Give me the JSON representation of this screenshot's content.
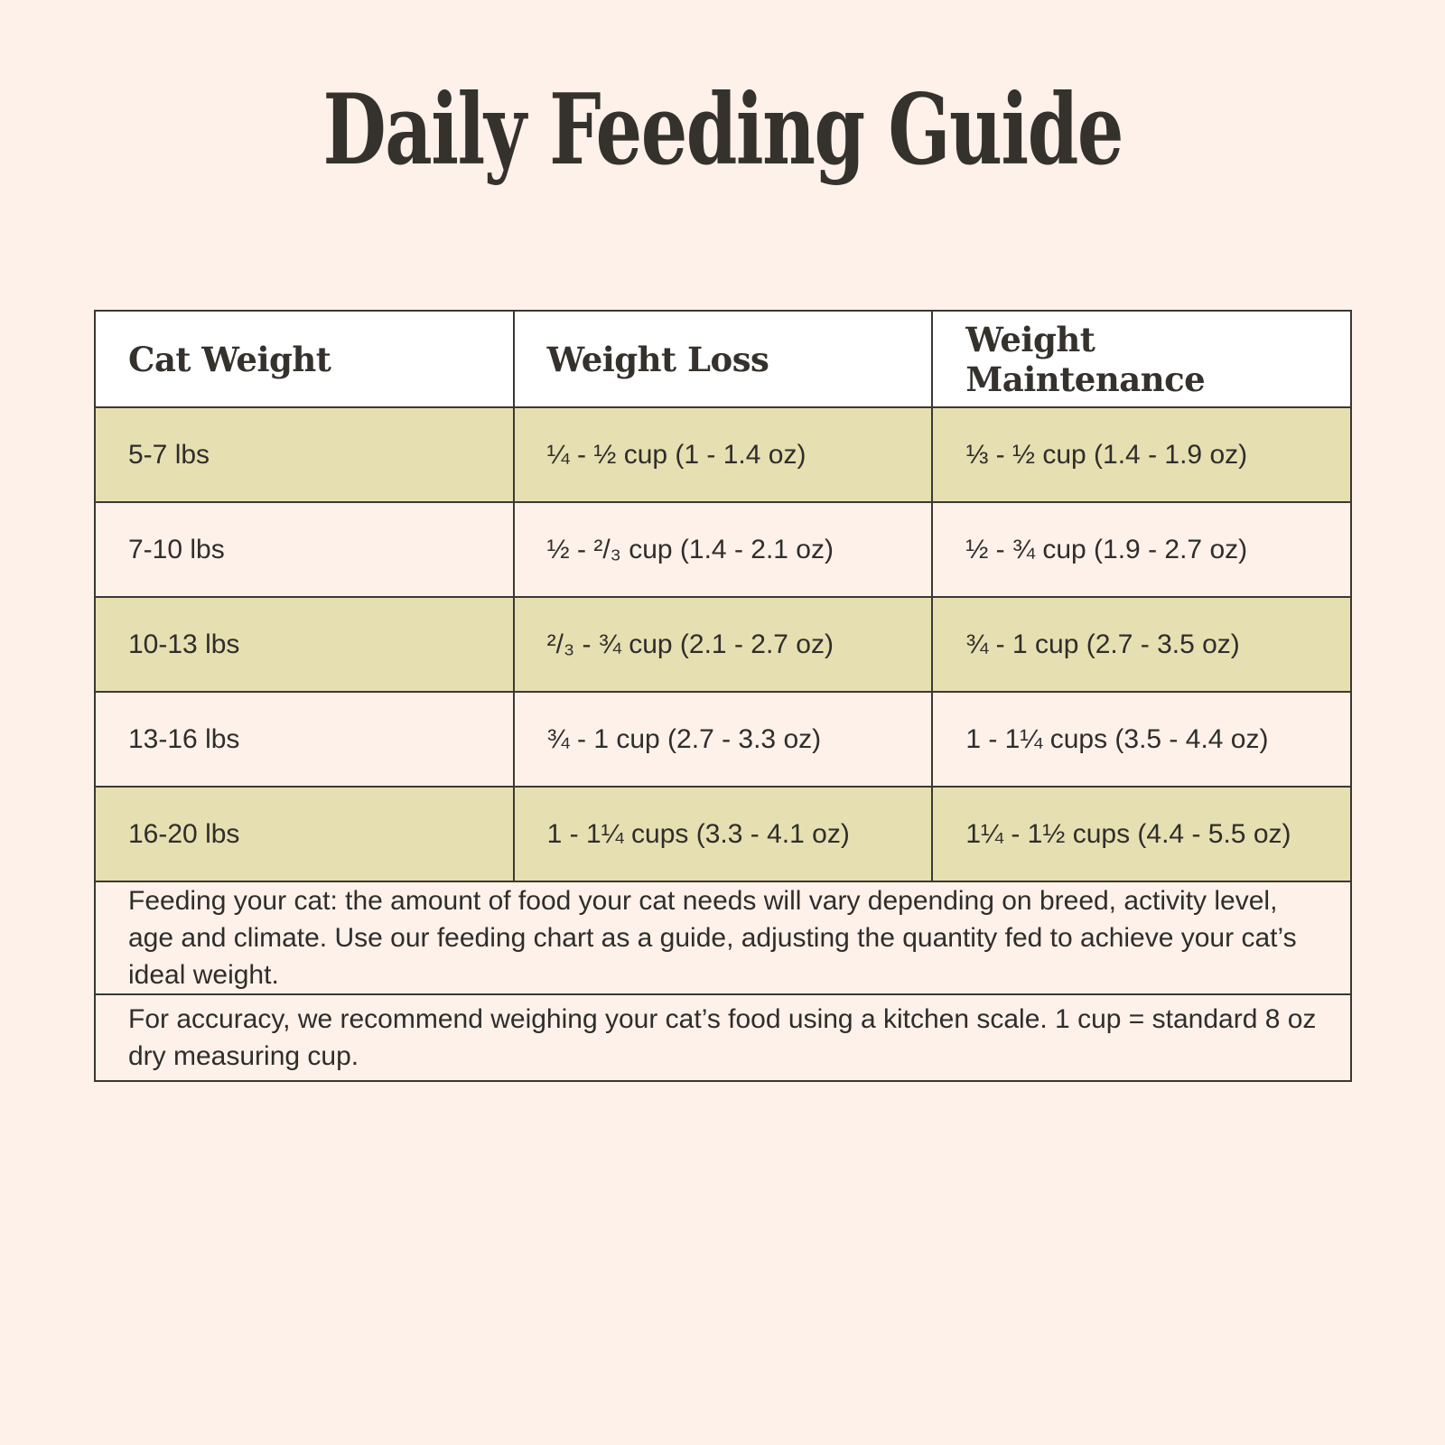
{
  "title": "Daily Feeding Guide",
  "colors": {
    "page_background": "#fdf1ea",
    "header_cell_background": "#ffffff",
    "row_olive_background": "#e6dfb1",
    "row_cream_background": "#fdf1ea",
    "border": "#3b3834",
    "heading_text": "#35312d",
    "body_text": "#2f2d2b"
  },
  "table": {
    "columns": [
      "Cat Weight",
      "Weight Loss",
      "Weight Maintenance"
    ],
    "rows": [
      {
        "cat_weight": "5-7 lbs",
        "weight_loss": "¼ - ½ cup (1 - 1.4 oz)",
        "weight_maintenance": "⅓ - ½ cup (1.4 - 1.9 oz)"
      },
      {
        "cat_weight": "7-10 lbs",
        "weight_loss": "½ - ²/₃ cup (1.4 - 2.1 oz)",
        "weight_maintenance": "½ - ¾ cup (1.9 - 2.7 oz)"
      },
      {
        "cat_weight": "10-13 lbs",
        "weight_loss": "²/₃ - ¾ cup (2.1 - 2.7 oz)",
        "weight_maintenance": "¾ - 1 cup (2.7 - 3.5 oz)"
      },
      {
        "cat_weight": "13-16 lbs",
        "weight_loss": "¾ - 1 cup (2.7 - 3.3 oz)",
        "weight_maintenance": "1 - 1¼ cups (3.5 - 4.4 oz)"
      },
      {
        "cat_weight": "16-20 lbs",
        "weight_loss": "1 - 1¼ cups (3.3 - 4.1 oz)",
        "weight_maintenance": "1¼ - 1½ cups (4.4 - 5.5 oz)"
      }
    ],
    "notes": [
      "Feeding your cat: the amount of food your cat needs will vary depending on breed, activity lev­el, age and climate. Use our feeding chart as a guide, adjusting the quantity fed to achieve your cat’s ideal weight.",
      "For accuracy, we recommend weighing your cat’s food using a kitchen scale. 1 cup = standard 8 oz dry measuring cup."
    ]
  }
}
